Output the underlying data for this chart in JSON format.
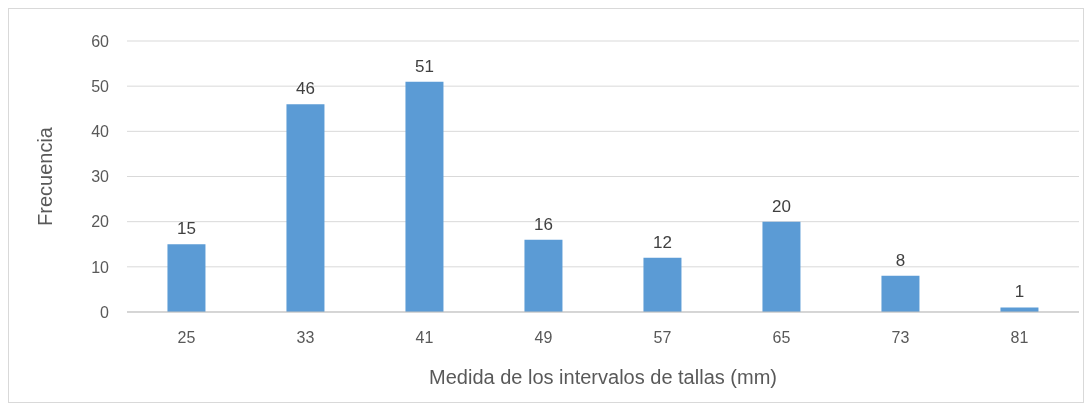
{
  "chart_data": {
    "type": "bar",
    "xlabel": "Medida de los intervalos de tallas (mm)",
    "ylabel": "Frecuencia",
    "categories": [
      "25",
      "33",
      "41",
      "49",
      "57",
      "65",
      "73",
      "81"
    ],
    "values": [
      15,
      46,
      51,
      16,
      12,
      20,
      8,
      1
    ],
    "color": "#5b9bd5",
    "ylim": [
      0,
      60
    ],
    "yticks": [
      0,
      10,
      20,
      30,
      40,
      50,
      60
    ],
    "grid": "y",
    "data_labels": true
  }
}
